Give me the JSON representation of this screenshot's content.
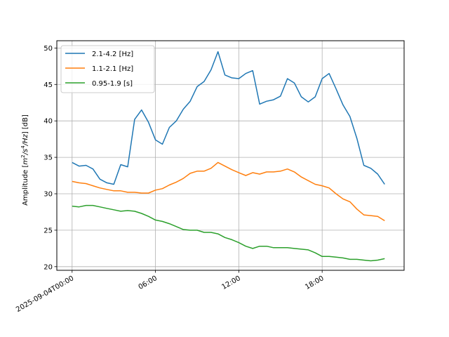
{
  "chart_data": {
    "type": "line",
    "title": "",
    "xlabel": "",
    "ylabel": "Amplitude [m²/s⁴/Hz] [dB]",
    "ylabel_parts": {
      "prefix": "Amplitude [",
      "m": "m",
      "exp_m": "2",
      "slash1": "/",
      "s": "s",
      "exp_s": "4",
      "slash2": "/",
      "hz": "Hz",
      "suffix": "] [dB]"
    },
    "x_unit": "hours",
    "xlim": [
      -1.1,
      23.9
    ],
    "ylim": [
      19.5,
      51
    ],
    "x_ticks": [
      {
        "value": 0,
        "label": "2025-09-04T00:00"
      },
      {
        "value": 6,
        "label": "06:00"
      },
      {
        "value": 12,
        "label": "12:00"
      },
      {
        "value": 18,
        "label": "18:00"
      }
    ],
    "y_ticks": [
      20,
      25,
      30,
      35,
      40,
      45,
      50
    ],
    "grid": true,
    "legend_position": "upper-left",
    "x": [
      0,
      0.5,
      1,
      1.5,
      2,
      2.5,
      3,
      3.5,
      4,
      4.5,
      5,
      5.5,
      6,
      6.5,
      7,
      7.5,
      8,
      8.5,
      9,
      9.5,
      10,
      10.5,
      11,
      11.5,
      12,
      12.5,
      13,
      13.5,
      14,
      14.5,
      15,
      15.5,
      16,
      16.5,
      17,
      17.5,
      18,
      18.5,
      19,
      19.5,
      20,
      20.5,
      21,
      21.5,
      22,
      22.5
    ],
    "series": [
      {
        "name": "2.1-4.2 [Hz]",
        "color": "#1f77b4",
        "values": [
          34.3,
          33.8,
          33.9,
          33.4,
          32.0,
          31.5,
          31.3,
          34.0,
          33.7,
          40.2,
          41.5,
          39.8,
          37.4,
          36.8,
          39.1,
          40.0,
          41.6,
          42.7,
          44.7,
          45.4,
          47.0,
          49.5,
          46.3,
          45.9,
          45.8,
          46.5,
          46.9,
          42.3,
          42.7,
          42.9,
          43.4,
          45.8,
          45.2,
          43.3,
          42.6,
          43.3,
          45.8,
          46.5,
          44.4,
          42.2,
          40.6,
          37.6,
          33.9,
          33.5,
          32.7,
          31.3
        ]
      },
      {
        "name": "1.1-2.1 [Hz]",
        "color": "#ff7f0e",
        "values": [
          31.7,
          31.5,
          31.4,
          31.1,
          30.8,
          30.6,
          30.4,
          30.4,
          30.2,
          30.2,
          30.1,
          30.1,
          30.5,
          30.7,
          31.2,
          31.6,
          32.1,
          32.8,
          33.1,
          33.1,
          33.5,
          34.3,
          33.8,
          33.3,
          32.9,
          32.5,
          32.9,
          32.7,
          33.0,
          33.0,
          33.1,
          33.4,
          33.0,
          32.3,
          31.8,
          31.3,
          31.1,
          30.8,
          30.0,
          29.3,
          28.9,
          27.9,
          27.1,
          27.0,
          26.9,
          26.3
        ]
      },
      {
        "name": "0.95-1.9 [s]",
        "color": "#2ca02c",
        "values": [
          28.3,
          28.2,
          28.4,
          28.4,
          28.2,
          28.0,
          27.8,
          27.6,
          27.7,
          27.6,
          27.3,
          26.9,
          26.4,
          26.2,
          25.9,
          25.5,
          25.1,
          25.0,
          25.0,
          24.7,
          24.7,
          24.5,
          24.0,
          23.7,
          23.3,
          22.8,
          22.5,
          22.8,
          22.8,
          22.6,
          22.6,
          22.6,
          22.5,
          22.4,
          22.3,
          21.9,
          21.4,
          21.4,
          21.3,
          21.2,
          21.0,
          21.0,
          20.9,
          20.8,
          20.9,
          21.1
        ]
      }
    ]
  }
}
